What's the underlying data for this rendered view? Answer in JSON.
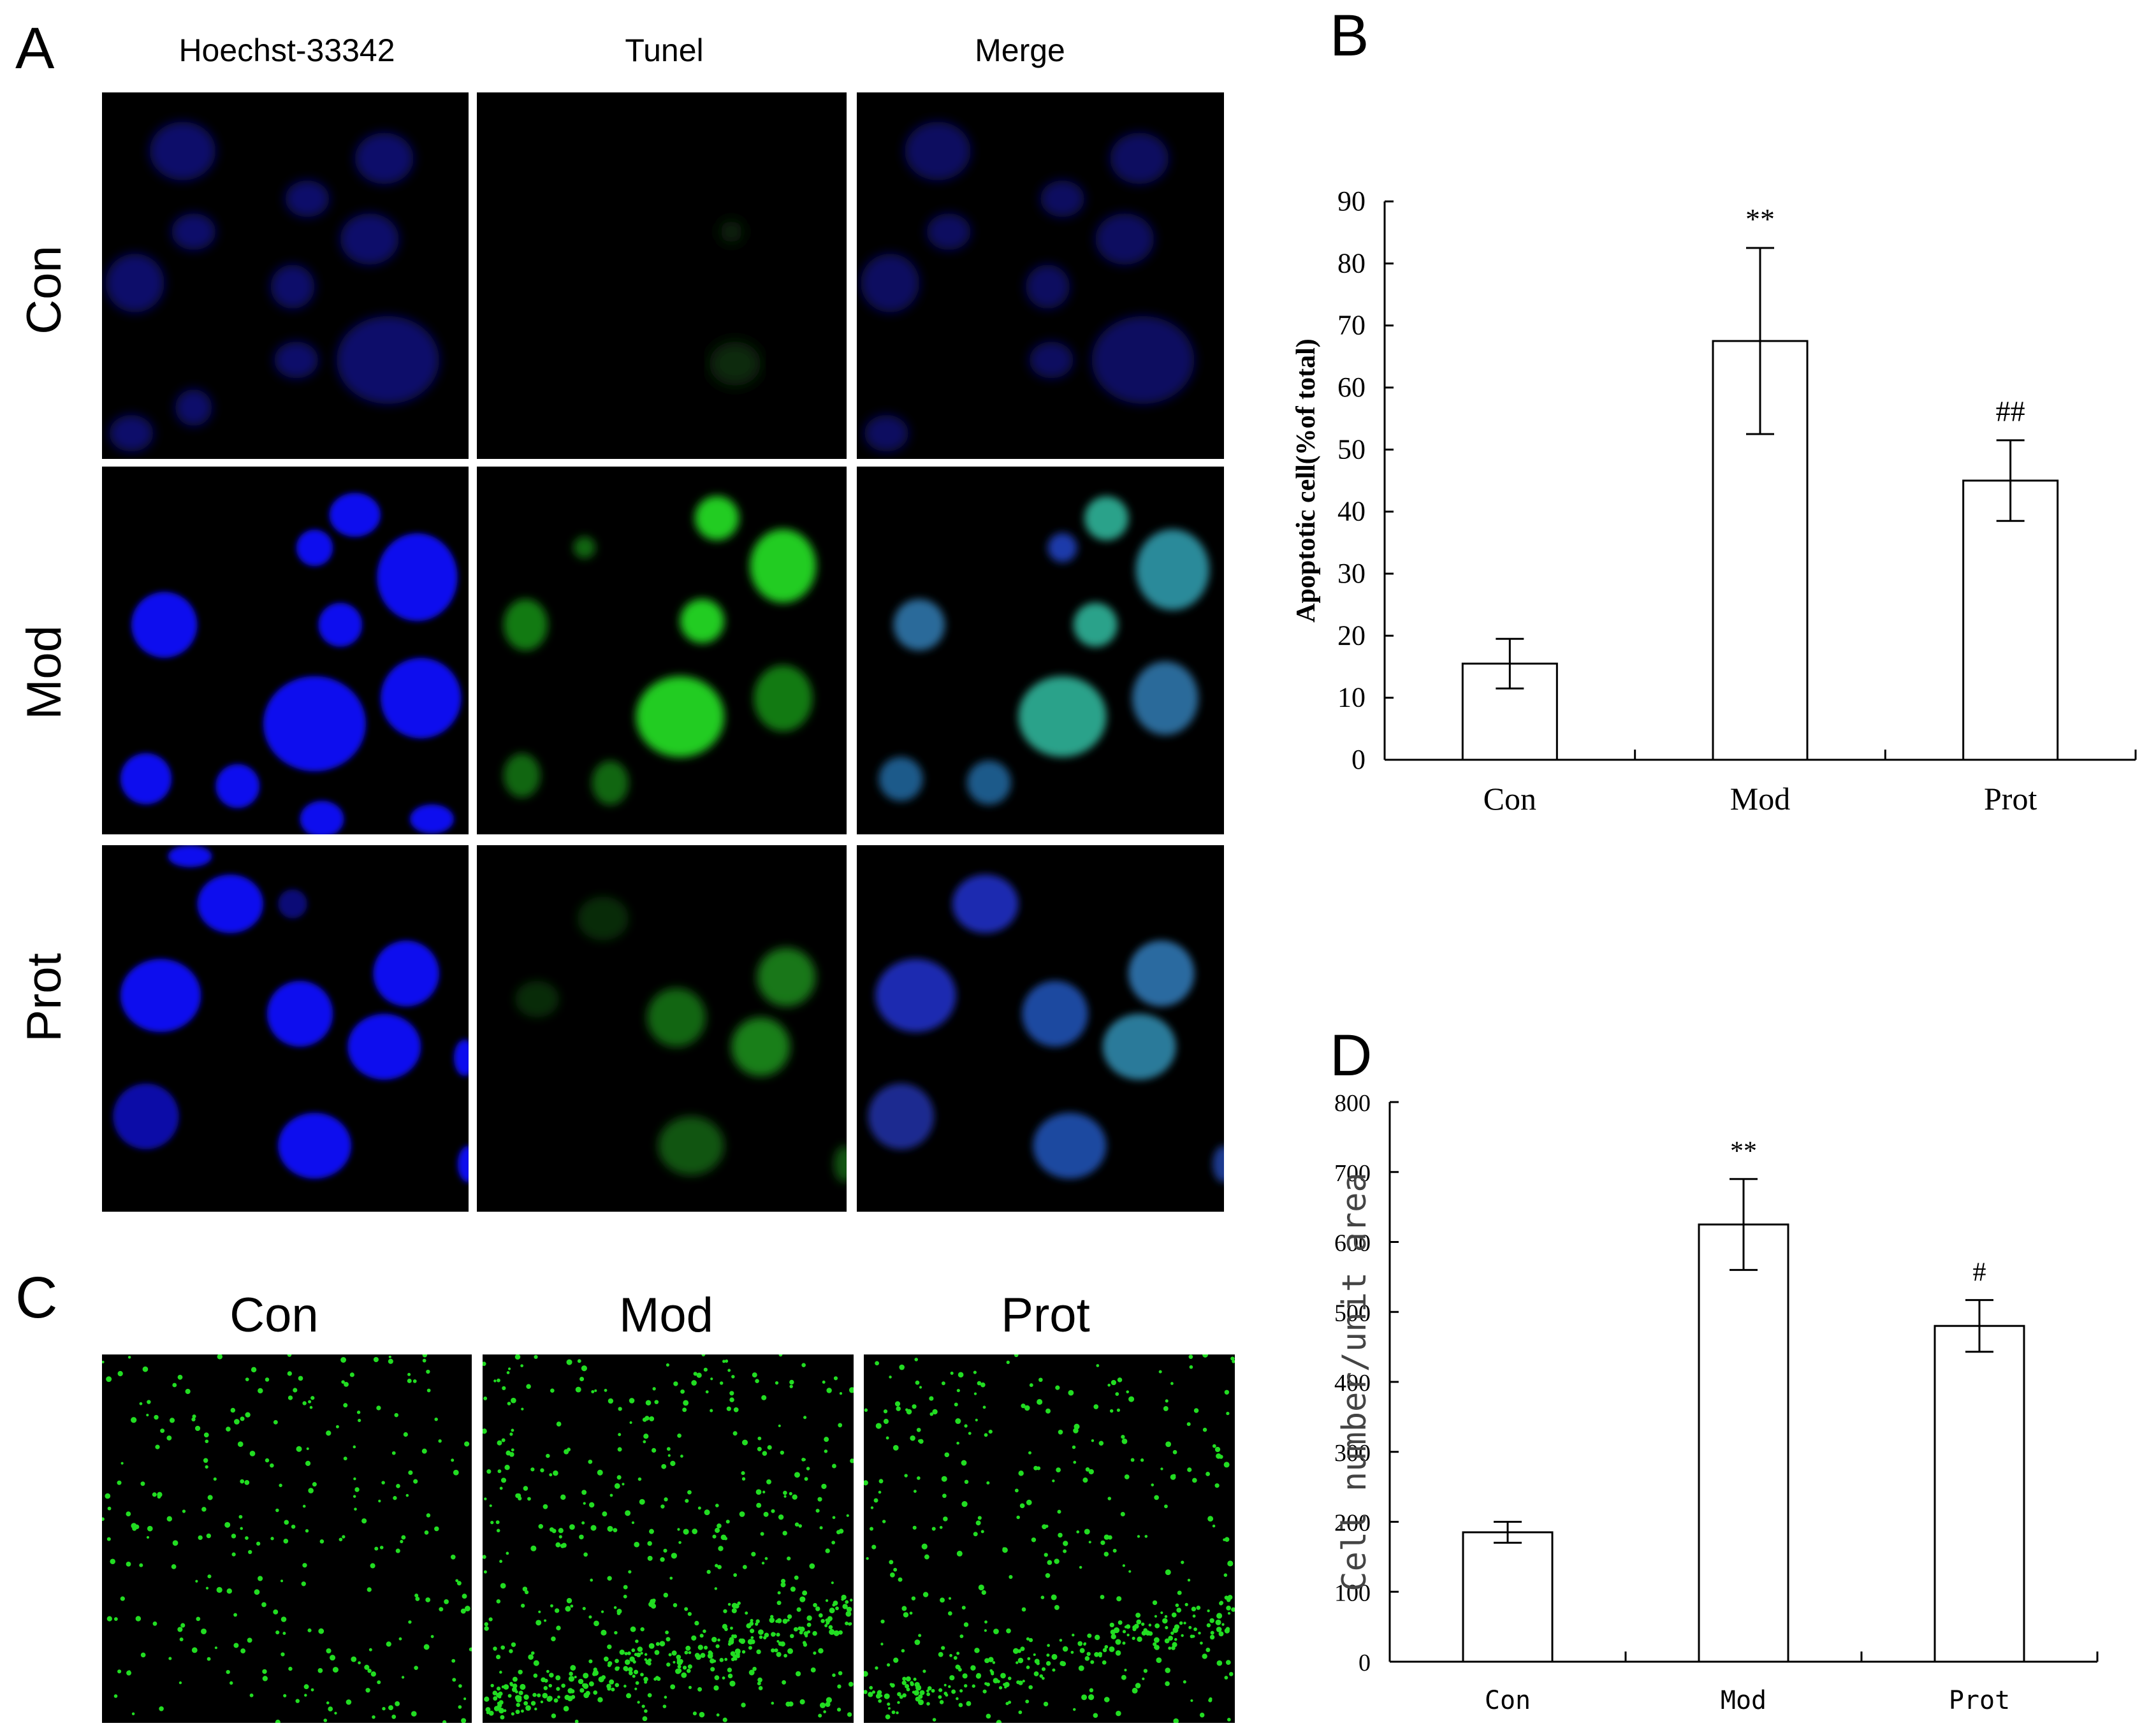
{
  "panel_a": {
    "letter": "A",
    "columns": [
      "Hoechst-33342",
      "Tunel",
      "Merge"
    ],
    "rows": [
      "Con",
      "Mod",
      "Prot"
    ]
  },
  "panel_b": {
    "letter": "B"
  },
  "panel_c": {
    "letter": "C",
    "labels": [
      "Con",
      "Mod",
      "Prot"
    ]
  },
  "panel_d": {
    "letter": "D"
  },
  "colors": {
    "nucleus_blue": "#1010ee",
    "tunel_green": "#22dd22",
    "merge_teal": "#2a8a9a"
  },
  "chart_data": [
    {
      "panel": "B",
      "type": "bar",
      "categories": [
        "Con",
        "Mod",
        "Prot"
      ],
      "values": [
        15.5,
        67.5,
        45
      ],
      "errors": [
        4,
        15,
        6.5
      ],
      "annotations": [
        "",
        "**",
        "##"
      ],
      "ylabel": "Apoptotic cell(%of total)",
      "xlabel": "",
      "ylim": [
        0,
        90
      ],
      "yticks": [
        0,
        10,
        20,
        30,
        40,
        50,
        60,
        70,
        80,
        90
      ],
      "grid": false
    },
    {
      "panel": "D",
      "type": "bar",
      "categories": [
        "Con",
        "Mod",
        "Prot"
      ],
      "values": [
        185,
        625,
        480
      ],
      "errors": [
        15,
        65,
        37
      ],
      "annotations": [
        "",
        "**",
        "#"
      ],
      "ylabel": "Cell number/unit area",
      "xlabel": "",
      "ylim": [
        0,
        800
      ],
      "yticks": [
        0,
        100,
        200,
        300,
        400,
        500,
        600,
        700,
        800
      ],
      "grid": false
    }
  ]
}
